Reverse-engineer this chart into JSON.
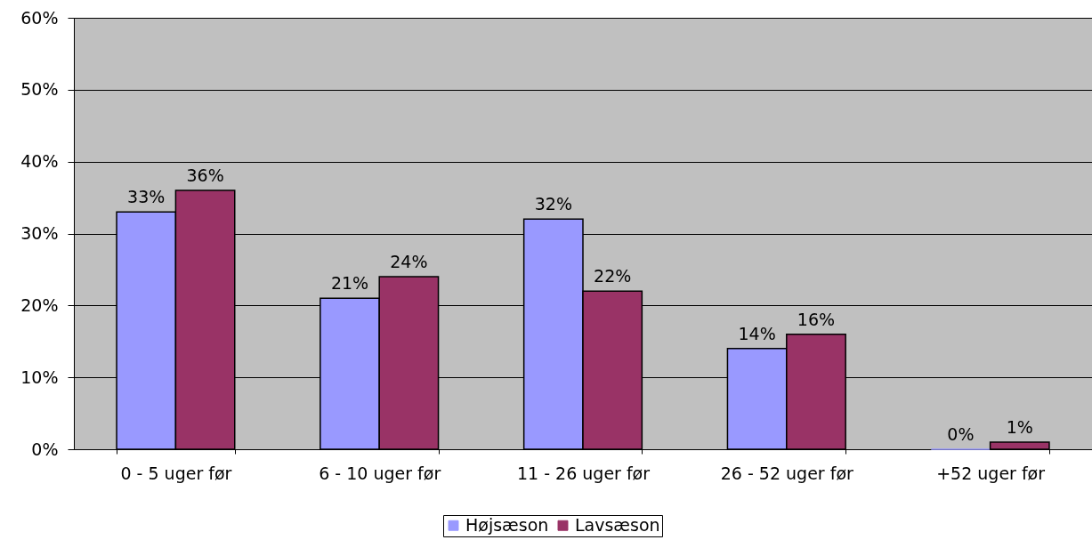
{
  "chart_data": {
    "type": "bar",
    "categories": [
      "0 - 5 uger før",
      "6 - 10 uger før",
      "11 - 26 uger før",
      "26 - 52 uger før",
      "+52 uger før"
    ],
    "series": [
      {
        "name": "Højsæson",
        "color": "#9999ff",
        "values": [
          33,
          21,
          32,
          14,
          0
        ],
        "value_labels": [
          "33%",
          "21%",
          "32%",
          "14%",
          "0%"
        ]
      },
      {
        "name": "Lavsæson",
        "color": "#993366",
        "values": [
          36,
          24,
          22,
          16,
          1
        ],
        "value_labels": [
          "36%",
          "24%",
          "22%",
          "16%",
          "1%"
        ]
      }
    ],
    "ylim": [
      0,
      60
    ],
    "yticks": [
      {
        "value": 0,
        "label": "0%"
      },
      {
        "value": 10,
        "label": "10%"
      },
      {
        "value": 20,
        "label": "20%"
      },
      {
        "value": 30,
        "label": "30%"
      },
      {
        "value": 40,
        "label": "40%"
      },
      {
        "value": 50,
        "label": "50%"
      },
      {
        "value": 60,
        "label": "60%"
      }
    ],
    "grid": "y",
    "legend": "bottom"
  }
}
